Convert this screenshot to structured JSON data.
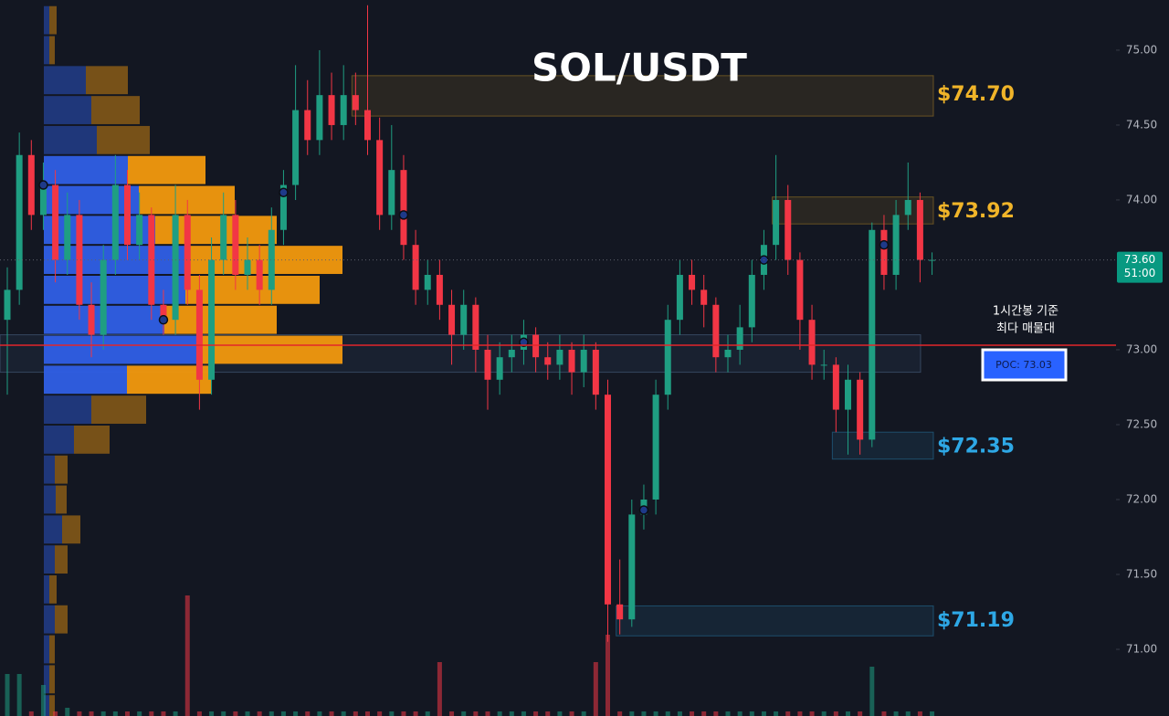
{
  "chart_data": {
    "type": "candlestick",
    "title": "SOL/USDT",
    "ylim": [
      70.555,
      75.335
    ],
    "yticks": [
      {
        "value": 75,
        "label": "75.00"
      },
      {
        "value": 74.5,
        "label": "74.50"
      },
      {
        "value": 74,
        "label": "74.00"
      },
      {
        "value": 73,
        "label": "73.00"
      },
      {
        "value": 72.5,
        "label": "72.50"
      },
      {
        "value": 72,
        "label": "72.00"
      },
      {
        "value": 71.5,
        "label": "71.50"
      },
      {
        "value": 71,
        "label": "71.00"
      }
    ],
    "up_color": "#1f9e82",
    "down_color": "#f23645",
    "candles": {
      "open": [
        73.2,
        73.4,
        74.3,
        73.9,
        74.1,
        73.6,
        73.9,
        73.3,
        73.1,
        73.6,
        74.1,
        73.7,
        73.9,
        73.3,
        73.2,
        73.9,
        73.4,
        72.8,
        73.6,
        73.9,
        73.5,
        73.6,
        73.4,
        73.8,
        74.1,
        74.6,
        74.4,
        74.7,
        74.5,
        74.7,
        74.6,
        74.4,
        73.9,
        74.2,
        73.7,
        73.4,
        73.5,
        73.3,
        73.1,
        73.3,
        73.0,
        72.8,
        72.95,
        73.0,
        73.1,
        72.95,
        72.9,
        73.0,
        72.85,
        73.0,
        72.7,
        71.3,
        71.2,
        71.9,
        72.0,
        72.7,
        73.2,
        73.5,
        73.4,
        73.3,
        72.95,
        73.0,
        73.15,
        73.5,
        73.7,
        74.0,
        73.6,
        73.2,
        72.9,
        72.9,
        72.6,
        72.8,
        72.4,
        73.8,
        73.5,
        73.9,
        74.0,
        73.6
      ],
      "high": [
        73.55,
        74.45,
        74.4,
        74.25,
        74.2,
        74.05,
        74.0,
        73.45,
        73.7,
        74.3,
        74.2,
        74.05,
        73.95,
        73.4,
        74.1,
        74.0,
        73.5,
        73.75,
        74.05,
        74.0,
        73.75,
        73.7,
        73.95,
        74.2,
        74.9,
        74.8,
        75.0,
        74.85,
        74.9,
        74.85,
        75.3,
        74.55,
        74.5,
        74.3,
        73.8,
        73.6,
        73.6,
        73.4,
        73.4,
        73.35,
        73.1,
        73.05,
        73.1,
        73.2,
        73.15,
        73.05,
        73.1,
        73.05,
        73.1,
        73.05,
        72.8,
        71.6,
        72.0,
        72.1,
        72.8,
        73.3,
        73.6,
        73.6,
        73.5,
        73.35,
        73.1,
        73.3,
        73.6,
        73.8,
        74.3,
        74.1,
        73.65,
        73.3,
        73.0,
        72.95,
        72.9,
        72.85,
        73.85,
        73.9,
        74.0,
        74.25,
        74.05,
        73.65
      ],
      "low": [
        72.7,
        73.3,
        73.8,
        73.8,
        73.45,
        73.5,
        73.2,
        72.95,
        73.0,
        73.5,
        73.6,
        73.6,
        73.2,
        73.1,
        73.1,
        73.3,
        72.6,
        72.7,
        73.5,
        73.4,
        73.4,
        73.3,
        73.3,
        73.7,
        74.0,
        74.3,
        74.3,
        74.4,
        74.4,
        74.5,
        74.3,
        73.8,
        73.8,
        73.6,
        73.3,
        73.3,
        73.2,
        72.9,
        73.0,
        72.85,
        72.6,
        72.7,
        72.85,
        72.9,
        72.85,
        72.8,
        72.8,
        72.7,
        72.75,
        72.6,
        71.05,
        71.1,
        71.15,
        71.8,
        71.9,
        72.6,
        73.1,
        73.3,
        73.15,
        72.85,
        72.85,
        72.9,
        73.05,
        73.4,
        73.6,
        73.5,
        73.0,
        72.8,
        72.8,
        72.45,
        72.3,
        72.3,
        72.35,
        73.4,
        73.4,
        73.8,
        73.45,
        73.5
      ],
      "close": [
        73.4,
        74.3,
        73.9,
        74.1,
        73.6,
        73.9,
        73.3,
        73.1,
        73.6,
        74.1,
        73.7,
        73.9,
        73.3,
        73.2,
        73.9,
        73.4,
        72.8,
        73.6,
        73.9,
        73.5,
        73.6,
        73.4,
        73.8,
        74.1,
        74.6,
        74.4,
        74.7,
        74.5,
        74.7,
        74.6,
        74.4,
        73.9,
        74.2,
        73.7,
        73.4,
        73.5,
        73.3,
        73.1,
        73.3,
        73.0,
        72.8,
        72.95,
        73.0,
        73.1,
        72.95,
        72.9,
        73.0,
        72.85,
        73.0,
        72.7,
        71.3,
        71.2,
        71.9,
        72.0,
        72.7,
        73.2,
        73.5,
        73.4,
        73.3,
        72.95,
        73.0,
        73.15,
        73.5,
        73.7,
        74.0,
        73.6,
        73.2,
        72.9,
        72.9,
        72.6,
        72.8,
        72.4,
        73.8,
        73.5,
        73.9,
        74.0,
        73.6,
        73.6
      ],
      "volume": [
        46,
        46,
        5,
        34,
        5,
        9,
        5,
        5,
        5,
        5,
        5,
        5,
        5,
        5,
        5,
        132,
        5,
        5,
        5,
        5,
        5,
        5,
        5,
        5,
        5,
        5,
        5,
        5,
        5,
        5,
        5,
        5,
        5,
        5,
        5,
        5,
        59,
        5,
        5,
        5,
        5,
        5,
        5,
        5,
        5,
        5,
        5,
        5,
        5,
        59,
        89,
        5,
        5,
        5,
        5,
        5,
        5,
        5,
        5,
        5,
        5,
        5,
        5,
        5,
        5,
        5,
        5,
        5,
        5,
        5,
        5,
        5,
        54,
        5,
        5,
        5,
        5,
        5
      ]
    },
    "markers": {
      "x": [
        3,
        13,
        23,
        33,
        43,
        53,
        63,
        73
      ],
      "values": [
        74.1,
        73.2,
        74.05,
        73.9,
        73.05,
        71.93,
        73.6,
        73.7
      ],
      "color": "#1e3a8a"
    },
    "volume_profile": {
      "bins": [
        75.3,
        75.1,
        74.9,
        74.7,
        74.5,
        74.3,
        74.1,
        73.9,
        73.7,
        73.5,
        73.3,
        73.1,
        72.9,
        72.7,
        72.5,
        72.3,
        72.1,
        71.9,
        71.7,
        71.5,
        71.3,
        71.1,
        70.9,
        70.7,
        70.5
      ],
      "buy": [
        6,
        6,
        46,
        52,
        58,
        92,
        104,
        122,
        160,
        155,
        132,
        172,
        91,
        52,
        33,
        12,
        13,
        20,
        12,
        6,
        12,
        6,
        6,
        6
      ],
      "sell": [
        8,
        6,
        46,
        53,
        58,
        85,
        105,
        133,
        167,
        147,
        123,
        155,
        92,
        60,
        39,
        14,
        12,
        20,
        14,
        8,
        14,
        6,
        6,
        6
      ],
      "buy_color": "#2f5fe6",
      "sell_color": "#f2990e",
      "value_area": [
        72.7,
        74.3
      ]
    },
    "zones": [
      {
        "label": "$74.70",
        "value": 74.7,
        "top": 74.83,
        "bottom": 74.56,
        "from": 29,
        "color": "#f0b429"
      },
      {
        "label": "$73.92",
        "value": 73.92,
        "top": 74.02,
        "bottom": 73.84,
        "from": 64,
        "color": "#f0b429"
      },
      {
        "label": "$72.35",
        "value": 72.35,
        "top": 72.45,
        "bottom": 72.27,
        "from": 69,
        "color": "#2ea8e6"
      },
      {
        "label": "$71.19",
        "value": 71.19,
        "top": 71.29,
        "bottom": 71.09,
        "from": 51,
        "color": "#2ea8e6"
      }
    ],
    "poc": {
      "value": 73.03,
      "label": "POC: 73.03",
      "band": [
        73.1,
        72.85
      ],
      "note": [
        "1시간봉 기준",
        "최다 매물대"
      ],
      "color": "#e3262a"
    },
    "last_price": {
      "value": 73.6,
      "label": "73.60",
      "countdown": "51:00",
      "color": "#089981"
    }
  }
}
